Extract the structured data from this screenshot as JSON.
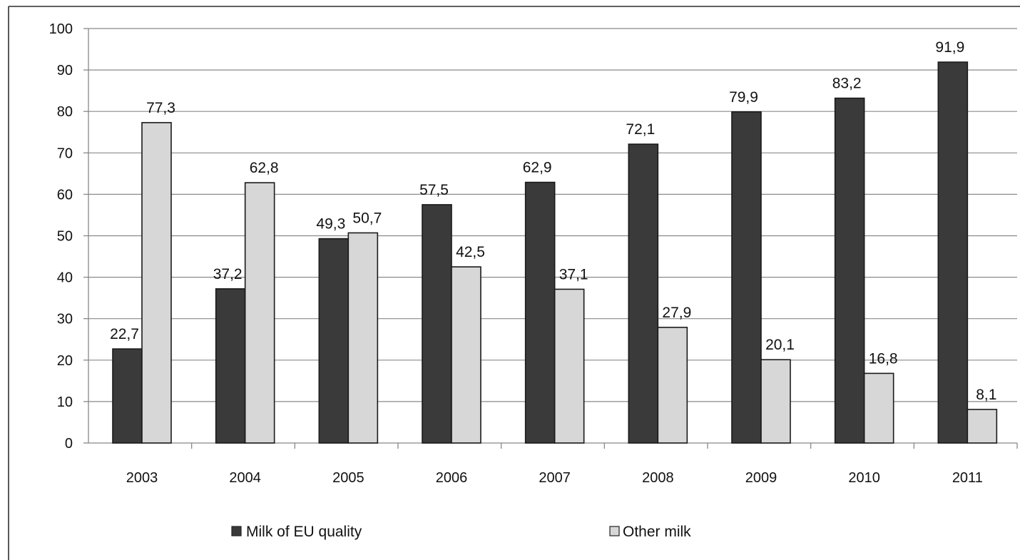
{
  "chart_data": {
    "type": "bar",
    "title": "",
    "xlabel": "",
    "ylabel": "",
    "ylim": [
      0,
      100
    ],
    "yticks": [
      0,
      10,
      20,
      30,
      40,
      50,
      60,
      70,
      80,
      90,
      100
    ],
    "grid": true,
    "legend_position": "bottom",
    "categories": [
      "2003",
      "2004",
      "2005",
      "2006",
      "2007",
      "2008",
      "2009",
      "2010",
      "2011"
    ],
    "series": [
      {
        "name": "Milk of EU quality",
        "color": "#3a3a3a",
        "values": [
          22.7,
          37.2,
          49.3,
          57.5,
          62.9,
          72.1,
          79.9,
          83.2,
          91.9
        ],
        "labels": [
          "22,7",
          "37,2",
          "49,3",
          "57,5",
          "62,9",
          "72,1",
          "79,9",
          "83,2",
          "91,9"
        ]
      },
      {
        "name": "Other milk",
        "color": "#d7d7d7",
        "values": [
          77.3,
          62.8,
          50.7,
          42.5,
          37.1,
          27.9,
          20.1,
          16.8,
          8.1
        ],
        "labels": [
          "77,3",
          "62,8",
          "50,7",
          "42,5",
          "37,1",
          "27,9",
          "20,1",
          "16,8",
          "8,1"
        ]
      }
    ]
  }
}
